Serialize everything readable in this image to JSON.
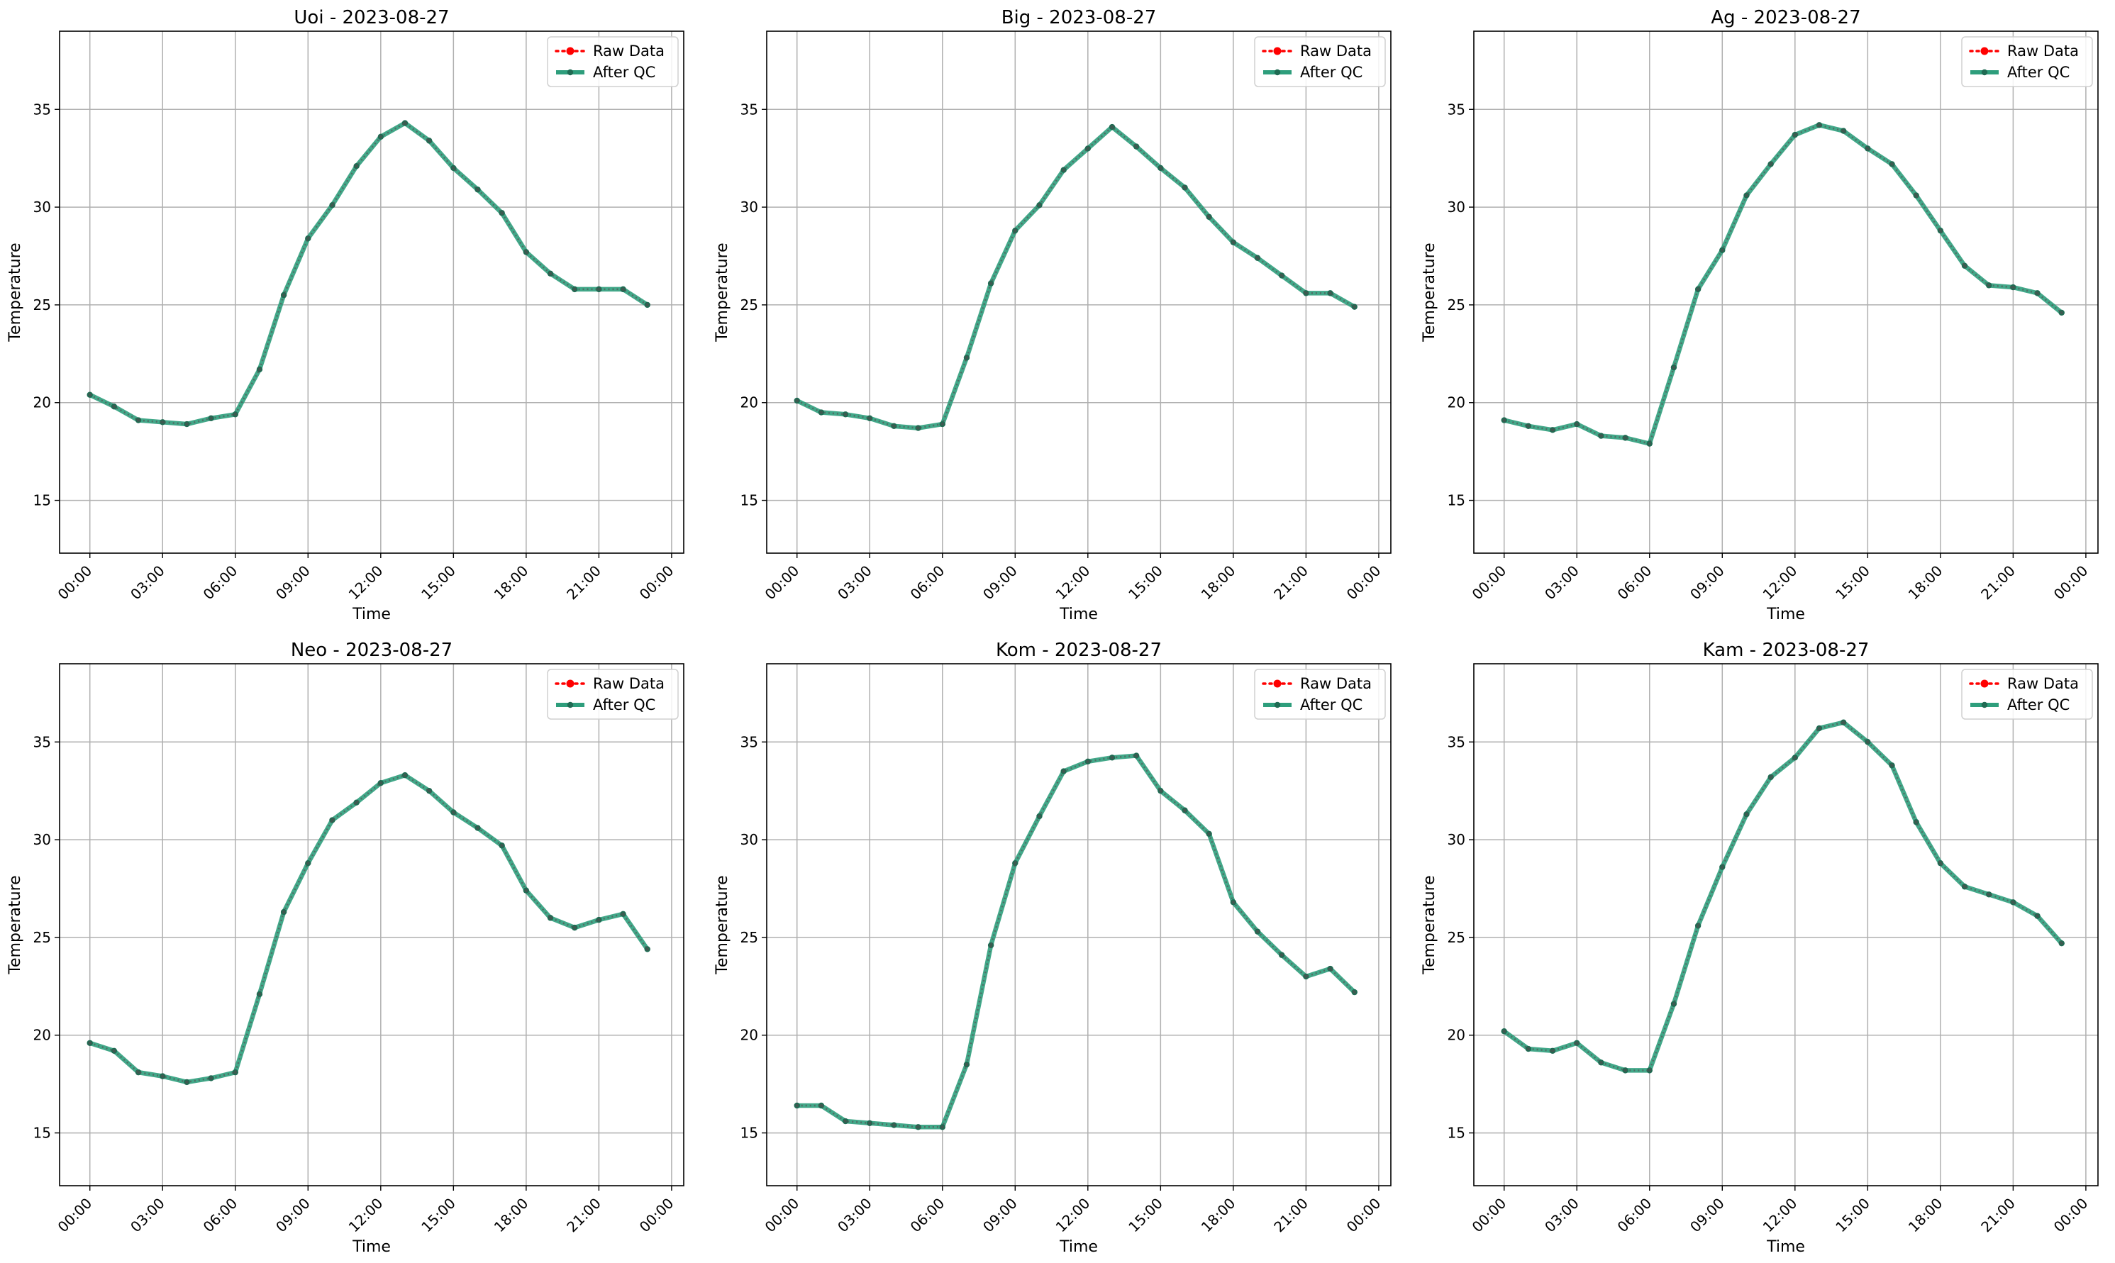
{
  "figure": {
    "colors": {
      "raw": "#ff0000",
      "qc": "#2e9e7c",
      "qc_marker": "#1f6b53",
      "grid": "#b0b0b0",
      "axis": "#000000"
    }
  },
  "chart_data": [
    {
      "type": "line",
      "title": "Uoi - 2023-08-27",
      "xlabel": "Time",
      "ylabel": "Temperature",
      "x_ticks": [
        "00:00",
        "03:00",
        "06:00",
        "09:00",
        "12:00",
        "15:00",
        "18:00",
        "21:00",
        "00:00"
      ],
      "y_ticks": [
        15,
        20,
        25,
        30,
        35
      ],
      "ylim": [
        12.3,
        39.0
      ],
      "grid": true,
      "legend": "upper right",
      "x": [
        "00:00",
        "01:00",
        "02:00",
        "03:00",
        "04:00",
        "05:00",
        "06:00",
        "07:00",
        "08:00",
        "09:00",
        "10:00",
        "11:00",
        "12:00",
        "13:00",
        "14:00",
        "15:00",
        "16:00",
        "17:00",
        "18:00",
        "19:00",
        "20:00",
        "21:00",
        "22:00",
        "23:00"
      ],
      "series": [
        {
          "name": "Raw Data",
          "values": [
            20.4,
            19.8,
            19.1,
            19.0,
            18.9,
            19.2,
            19.4,
            21.7,
            25.5,
            28.4,
            30.1,
            32.1,
            33.6,
            34.3,
            33.4,
            32.0,
            30.9,
            29.7,
            27.7,
            26.6,
            25.8,
            25.8,
            25.8,
            25.0
          ]
        },
        {
          "name": "After QC",
          "values": [
            20.4,
            19.8,
            19.1,
            19.0,
            18.9,
            19.2,
            19.4,
            21.7,
            25.5,
            28.4,
            30.1,
            32.1,
            33.6,
            34.3,
            33.4,
            32.0,
            30.9,
            29.7,
            27.7,
            26.6,
            25.8,
            25.8,
            25.8,
            25.0
          ]
        }
      ]
    },
    {
      "type": "line",
      "title": "Big - 2023-08-27",
      "xlabel": "Time",
      "ylabel": "Temperature",
      "x_ticks": [
        "00:00",
        "03:00",
        "06:00",
        "09:00",
        "12:00",
        "15:00",
        "18:00",
        "21:00",
        "00:00"
      ],
      "y_ticks": [
        15,
        20,
        25,
        30,
        35
      ],
      "ylim": [
        12.3,
        39.0
      ],
      "grid": true,
      "legend": "upper right",
      "x": [
        "00:00",
        "01:00",
        "02:00",
        "03:00",
        "04:00",
        "05:00",
        "06:00",
        "07:00",
        "08:00",
        "09:00",
        "10:00",
        "11:00",
        "12:00",
        "13:00",
        "14:00",
        "15:00",
        "16:00",
        "17:00",
        "18:00",
        "19:00",
        "20:00",
        "21:00",
        "22:00",
        "23:00"
      ],
      "series": [
        {
          "name": "Raw Data",
          "values": [
            20.1,
            19.5,
            19.4,
            19.2,
            18.8,
            18.7,
            18.9,
            22.3,
            26.1,
            28.8,
            30.1,
            31.9,
            33.0,
            34.1,
            33.1,
            32.0,
            31.0,
            29.5,
            28.2,
            27.4,
            26.5,
            25.6,
            25.6,
            24.9
          ]
        },
        {
          "name": "After QC",
          "values": [
            20.1,
            19.5,
            19.4,
            19.2,
            18.8,
            18.7,
            18.9,
            22.3,
            26.1,
            28.8,
            30.1,
            31.9,
            33.0,
            34.1,
            33.1,
            32.0,
            31.0,
            29.5,
            28.2,
            27.4,
            26.5,
            25.6,
            25.6,
            24.9
          ]
        }
      ]
    },
    {
      "type": "line",
      "title": "Ag - 2023-08-27",
      "xlabel": "Time",
      "ylabel": "Temperature",
      "x_ticks": [
        "00:00",
        "03:00",
        "06:00",
        "09:00",
        "12:00",
        "15:00",
        "18:00",
        "21:00",
        "00:00"
      ],
      "y_ticks": [
        15,
        20,
        25,
        30,
        35
      ],
      "ylim": [
        12.3,
        39.0
      ],
      "grid": true,
      "legend": "upper right",
      "x": [
        "00:00",
        "01:00",
        "02:00",
        "03:00",
        "04:00",
        "05:00",
        "06:00",
        "07:00",
        "08:00",
        "09:00",
        "10:00",
        "11:00",
        "12:00",
        "13:00",
        "14:00",
        "15:00",
        "16:00",
        "17:00",
        "18:00",
        "19:00",
        "20:00",
        "21:00",
        "22:00",
        "23:00"
      ],
      "series": [
        {
          "name": "Raw Data",
          "values": [
            19.1,
            18.8,
            18.6,
            18.9,
            18.3,
            18.2,
            17.9,
            21.8,
            25.8,
            27.8,
            30.6,
            32.2,
            33.7,
            34.2,
            33.9,
            33.0,
            32.2,
            30.6,
            28.8,
            27.0,
            26.0,
            25.9,
            25.6,
            24.6
          ]
        },
        {
          "name": "After QC",
          "values": [
            19.1,
            18.8,
            18.6,
            18.9,
            18.3,
            18.2,
            17.9,
            21.8,
            25.8,
            27.8,
            30.6,
            32.2,
            33.7,
            34.2,
            33.9,
            33.0,
            32.2,
            30.6,
            28.8,
            27.0,
            26.0,
            25.9,
            25.6,
            24.6
          ]
        }
      ]
    },
    {
      "type": "line",
      "title": "Neo - 2023-08-27",
      "xlabel": "Time",
      "ylabel": "Temperature",
      "x_ticks": [
        "00:00",
        "03:00",
        "06:00",
        "09:00",
        "12:00",
        "15:00",
        "18:00",
        "21:00",
        "00:00"
      ],
      "y_ticks": [
        15,
        20,
        25,
        30,
        35
      ],
      "ylim": [
        12.3,
        39.0
      ],
      "grid": true,
      "legend": "upper right",
      "x": [
        "00:00",
        "01:00",
        "02:00",
        "03:00",
        "04:00",
        "05:00",
        "06:00",
        "07:00",
        "08:00",
        "09:00",
        "10:00",
        "11:00",
        "12:00",
        "13:00",
        "14:00",
        "15:00",
        "16:00",
        "17:00",
        "18:00",
        "19:00",
        "20:00",
        "21:00",
        "22:00",
        "23:00"
      ],
      "series": [
        {
          "name": "Raw Data",
          "values": [
            19.6,
            19.2,
            18.1,
            17.9,
            17.6,
            17.8,
            18.1,
            22.1,
            26.3,
            28.8,
            31.0,
            31.9,
            32.9,
            33.3,
            32.5,
            31.4,
            30.6,
            29.7,
            27.4,
            26.0,
            25.5,
            25.9,
            26.2,
            24.4
          ]
        },
        {
          "name": "After QC",
          "values": [
            19.6,
            19.2,
            18.1,
            17.9,
            17.6,
            17.8,
            18.1,
            22.1,
            26.3,
            28.8,
            31.0,
            31.9,
            32.9,
            33.3,
            32.5,
            31.4,
            30.6,
            29.7,
            27.4,
            26.0,
            25.5,
            25.9,
            26.2,
            24.4
          ]
        }
      ]
    },
    {
      "type": "line",
      "title": "Kom - 2023-08-27",
      "xlabel": "Time",
      "ylabel": "Temperature",
      "x_ticks": [
        "00:00",
        "03:00",
        "06:00",
        "09:00",
        "12:00",
        "15:00",
        "18:00",
        "21:00",
        "00:00"
      ],
      "y_ticks": [
        15,
        20,
        25,
        30,
        35
      ],
      "ylim": [
        12.3,
        39.0
      ],
      "grid": true,
      "legend": "upper right",
      "x": [
        "00:00",
        "01:00",
        "02:00",
        "03:00",
        "04:00",
        "05:00",
        "06:00",
        "07:00",
        "08:00",
        "09:00",
        "10:00",
        "11:00",
        "12:00",
        "13:00",
        "14:00",
        "15:00",
        "16:00",
        "17:00",
        "18:00",
        "19:00",
        "20:00",
        "21:00",
        "22:00",
        "23:00"
      ],
      "series": [
        {
          "name": "Raw Data",
          "values": [
            16.4,
            16.4,
            15.6,
            15.5,
            15.4,
            15.3,
            15.3,
            18.5,
            24.6,
            28.8,
            31.2,
            33.5,
            34.0,
            34.2,
            34.3,
            32.5,
            31.5,
            30.3,
            26.8,
            25.3,
            24.1,
            23.0,
            23.4,
            22.2
          ]
        },
        {
          "name": "After QC",
          "values": [
            16.4,
            16.4,
            15.6,
            15.5,
            15.4,
            15.3,
            15.3,
            18.5,
            24.6,
            28.8,
            31.2,
            33.5,
            34.0,
            34.2,
            34.3,
            32.5,
            31.5,
            30.3,
            26.8,
            25.3,
            24.1,
            23.0,
            23.4,
            22.2
          ]
        }
      ]
    },
    {
      "type": "line",
      "title": "Kam - 2023-08-27",
      "xlabel": "Time",
      "ylabel": "Temperature",
      "x_ticks": [
        "00:00",
        "03:00",
        "06:00",
        "09:00",
        "12:00",
        "15:00",
        "18:00",
        "21:00",
        "00:00"
      ],
      "y_ticks": [
        15,
        20,
        25,
        30,
        35
      ],
      "ylim": [
        12.3,
        39.0
      ],
      "grid": true,
      "legend": "upper right",
      "x": [
        "00:00",
        "01:00",
        "02:00",
        "03:00",
        "04:00",
        "05:00",
        "06:00",
        "07:00",
        "08:00",
        "09:00",
        "10:00",
        "11:00",
        "12:00",
        "13:00",
        "14:00",
        "15:00",
        "16:00",
        "17:00",
        "18:00",
        "19:00",
        "20:00",
        "21:00",
        "22:00",
        "23:00"
      ],
      "series": [
        {
          "name": "Raw Data",
          "values": [
            20.2,
            19.3,
            19.2,
            19.6,
            18.6,
            18.2,
            18.2,
            21.6,
            25.6,
            28.6,
            31.3,
            33.2,
            34.2,
            35.7,
            36.0,
            35.0,
            33.8,
            30.9,
            28.8,
            27.6,
            27.2,
            26.8,
            26.1,
            24.7
          ]
        },
        {
          "name": "After QC",
          "values": [
            20.2,
            19.3,
            19.2,
            19.6,
            18.6,
            18.2,
            18.2,
            21.6,
            25.6,
            28.6,
            31.3,
            33.2,
            34.2,
            35.7,
            36.0,
            35.0,
            33.8,
            30.9,
            28.8,
            27.6,
            27.2,
            26.8,
            26.1,
            24.7
          ]
        }
      ]
    }
  ]
}
